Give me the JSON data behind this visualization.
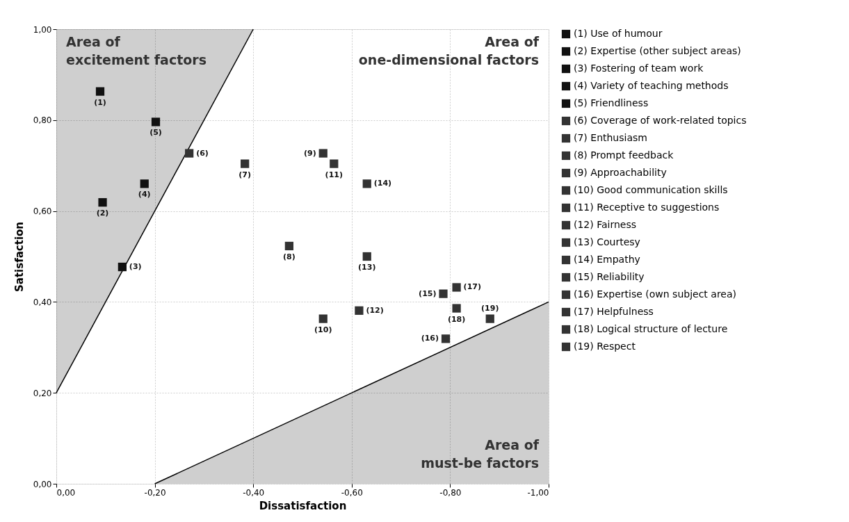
{
  "chart_data": {
    "type": "scatter",
    "xlabel": "Dissatisfaction",
    "ylabel": "Satisfaction",
    "xlim": [
      0,
      -1.0
    ],
    "ylim": [
      0,
      1.0
    ],
    "xticks": [
      {
        "value": 0,
        "label": "0,00"
      },
      {
        "value": -0.2,
        "label": "-0,20"
      },
      {
        "value": -0.4,
        "label": "-0,40"
      },
      {
        "value": -0.6,
        "label": "-0,60"
      },
      {
        "value": -0.8,
        "label": "-0,80"
      },
      {
        "value": -1.0,
        "label": "-1,00"
      }
    ],
    "yticks": [
      {
        "value": 0,
        "label": "0,00"
      },
      {
        "value": 0.2,
        "label": "0,20"
      },
      {
        "value": 0.4,
        "label": "0,40"
      },
      {
        "value": 0.6,
        "label": "0,60"
      },
      {
        "value": 0.8,
        "label": "0,80"
      },
      {
        "value": 1.0,
        "label": "1,00"
      }
    ],
    "grid": true,
    "legend": "right",
    "marker": "square",
    "series": [
      {
        "type": "line",
        "color": "#000000",
        "marker": "none",
        "x": [
          0,
          -0.4
        ],
        "values": [
          0.2,
          1.0
        ],
        "lower": [
          0.2,
          1.0
        ],
        "upper": [
          1.0,
          1.0
        ]
      },
      {
        "type": "line",
        "color": "#000000",
        "marker": "none",
        "x": [
          -0.2,
          -1.0
        ],
        "values": [
          0,
          0.4
        ],
        "lower": [
          0,
          0
        ],
        "upper": [
          0,
          0.4
        ]
      },
      {
        "name": "(1) Use of humour",
        "color": "#111111",
        "x": [
          -0.089
        ],
        "values": [
          0.863
        ]
      },
      {
        "name": "(2) Expertise (other subject areas)",
        "color": "#111111",
        "x": [
          -0.094
        ],
        "values": [
          0.619
        ]
      },
      {
        "name": "(3) Fostering of team work",
        "color": "#111111",
        "x": [
          -0.134
        ],
        "values": [
          0.477
        ]
      },
      {
        "name": "(4) Variety of teaching methods",
        "color": "#111111",
        "x": [
          -0.179
        ],
        "values": [
          0.66
        ]
      },
      {
        "name": "(5) Friendliness",
        "color": "#111111",
        "x": [
          -0.202
        ],
        "values": [
          0.796
        ]
      },
      {
        "name": "(6) Coverage of work-related topics",
        "color": "#333333",
        "x": [
          -0.27
        ],
        "values": [
          0.727
        ]
      },
      {
        "name": "(7) Enthusiasm",
        "color": "#333333",
        "x": [
          -0.383
        ],
        "values": [
          0.704
        ]
      },
      {
        "name": "(8) Prompt feedback",
        "color": "#333333",
        "x": [
          -0.473
        ],
        "values": [
          0.523
        ]
      },
      {
        "name": "(9) Approachability",
        "color": "#333333",
        "x": [
          -0.542
        ],
        "values": [
          0.727
        ]
      },
      {
        "name": "(10) Good communication skills",
        "color": "#333333",
        "x": [
          -0.542
        ],
        "values": [
          0.363
        ]
      },
      {
        "name": "(11) Receptive to suggestions",
        "color": "#333333",
        "x": [
          -0.564
        ],
        "values": [
          0.704
        ]
      },
      {
        "name": "(12) Fairness",
        "color": "#333333",
        "x": [
          -0.615
        ],
        "values": [
          0.381
        ]
      },
      {
        "name": "(13) Courtesy",
        "color": "#333333",
        "x": [
          -0.631
        ],
        "values": [
          0.5
        ]
      },
      {
        "name": "(14) Empathy",
        "color": "#333333",
        "x": [
          -0.631
        ],
        "values": [
          0.66
        ]
      },
      {
        "name": "(15) Reliability",
        "color": "#333333",
        "x": [
          -0.786
        ],
        "values": [
          0.418
        ]
      },
      {
        "name": "(16) Expertise (own subject area)",
        "color": "#333333",
        "x": [
          -0.791
        ],
        "values": [
          0.319
        ]
      },
      {
        "name": "(17) Helpfulness",
        "color": "#333333",
        "x": [
          -0.813
        ],
        "values": [
          0.432
        ]
      },
      {
        "name": "(18) Logical structure of lecture",
        "color": "#333333",
        "x": [
          -0.813
        ],
        "values": [
          0.386
        ]
      },
      {
        "name": "(19) Respect",
        "color": "#333333",
        "x": [
          -0.881
        ],
        "values": [
          0.363
        ]
      }
    ],
    "annotations": [
      "Area of\nexcitement factors",
      "Area of\none-dimensional factors",
      "Area of\nmust-be factors",
      {
        "text": "(1)",
        "x": -0.089,
        "y": 0.863
      },
      {
        "text": "(2)",
        "x": -0.094,
        "y": 0.619
      },
      {
        "text": "(3)",
        "x": -0.134,
        "y": 0.477
      },
      {
        "text": "(4)",
        "x": -0.179,
        "y": 0.66
      },
      {
        "text": "(5)",
        "x": -0.202,
        "y": 0.796
      },
      {
        "text": "(6)",
        "x": -0.27,
        "y": 0.727
      },
      {
        "text": "(7)",
        "x": -0.383,
        "y": 0.704
      },
      {
        "text": "(8)",
        "x": -0.473,
        "y": 0.523
      },
      {
        "text": "(9)",
        "x": -0.542,
        "y": 0.727
      },
      {
        "text": "(10)",
        "x": -0.542,
        "y": 0.363
      },
      {
        "text": "(11)",
        "x": -0.564,
        "y": 0.704
      },
      {
        "text": "(12)",
        "x": -0.615,
        "y": 0.381
      },
      {
        "text": "(13)",
        "x": -0.631,
        "y": 0.5
      },
      {
        "text": "(14)",
        "x": -0.631,
        "y": 0.66
      },
      {
        "text": "(15)",
        "x": -0.786,
        "y": 0.418
      },
      {
        "text": "(16)",
        "x": -0.791,
        "y": 0.319
      },
      {
        "text": "(17)",
        "x": -0.813,
        "y": 0.432
      },
      {
        "text": "(18)",
        "x": -0.813,
        "y": 0.386
      },
      {
        "text": "(19)",
        "x": -0.881,
        "y": 0.363
      }
    ]
  }
}
